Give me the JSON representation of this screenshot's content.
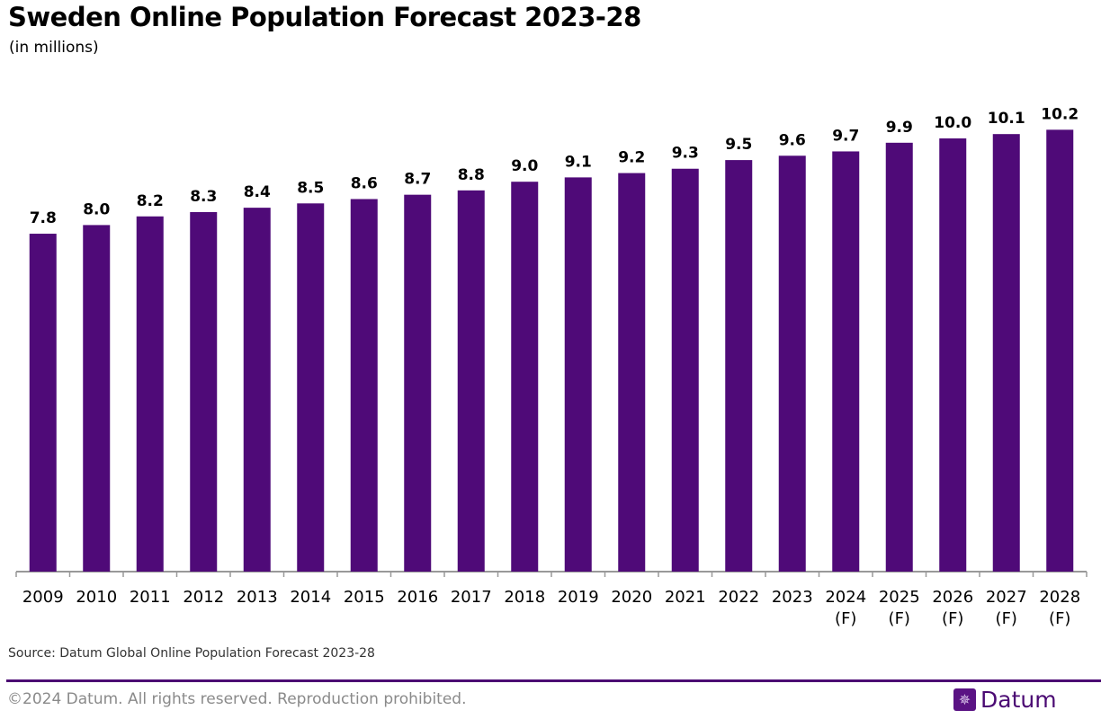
{
  "header": {
    "title": "Sweden Online Population Forecast 2023-28",
    "subtitle": "(in millions)"
  },
  "footer": {
    "source": "Source: Datum Global Online Population Forecast 2023-28",
    "copyright": "©2024 Datum. All rights reserved. Reproduction prohibited.",
    "logo_text": "Datum",
    "logo_icon": "globe-icon"
  },
  "colors": {
    "bar": "#4f0a78",
    "accent": "#4b0a73",
    "axis": "#999999"
  },
  "chart_data": {
    "type": "bar",
    "title": "Sweden Online Population Forecast 2023-28",
    "subtitle": "(in millions)",
    "categories": [
      "2009",
      "2010",
      "2011",
      "2012",
      "2013",
      "2014",
      "2015",
      "2016",
      "2017",
      "2018",
      "2019",
      "2020",
      "2021",
      "2022",
      "2023",
      "2024\n(F)",
      "2025\n(F)",
      "2026\n(F)",
      "2027\n(F)",
      "2028\n(F)"
    ],
    "values": [
      7.8,
      8.0,
      8.2,
      8.3,
      8.4,
      8.5,
      8.6,
      8.7,
      8.8,
      9.0,
      9.1,
      9.2,
      9.3,
      9.5,
      9.6,
      9.7,
      9.9,
      10.0,
      10.1,
      10.2
    ],
    "data_labels": [
      "7.8",
      "8.0",
      "8.2",
      "8.3",
      "8.4",
      "8.5",
      "8.6",
      "8.7",
      "8.8",
      "9.0",
      "9.1",
      "9.2",
      "9.3",
      "9.5",
      "9.6",
      "9.7",
      "9.9",
      "10.0",
      "10.1",
      "10.2"
    ],
    "xlabel": "",
    "ylabel": "",
    "ylim": [
      0,
      11
    ],
    "grid": false,
    "legend": "none"
  }
}
